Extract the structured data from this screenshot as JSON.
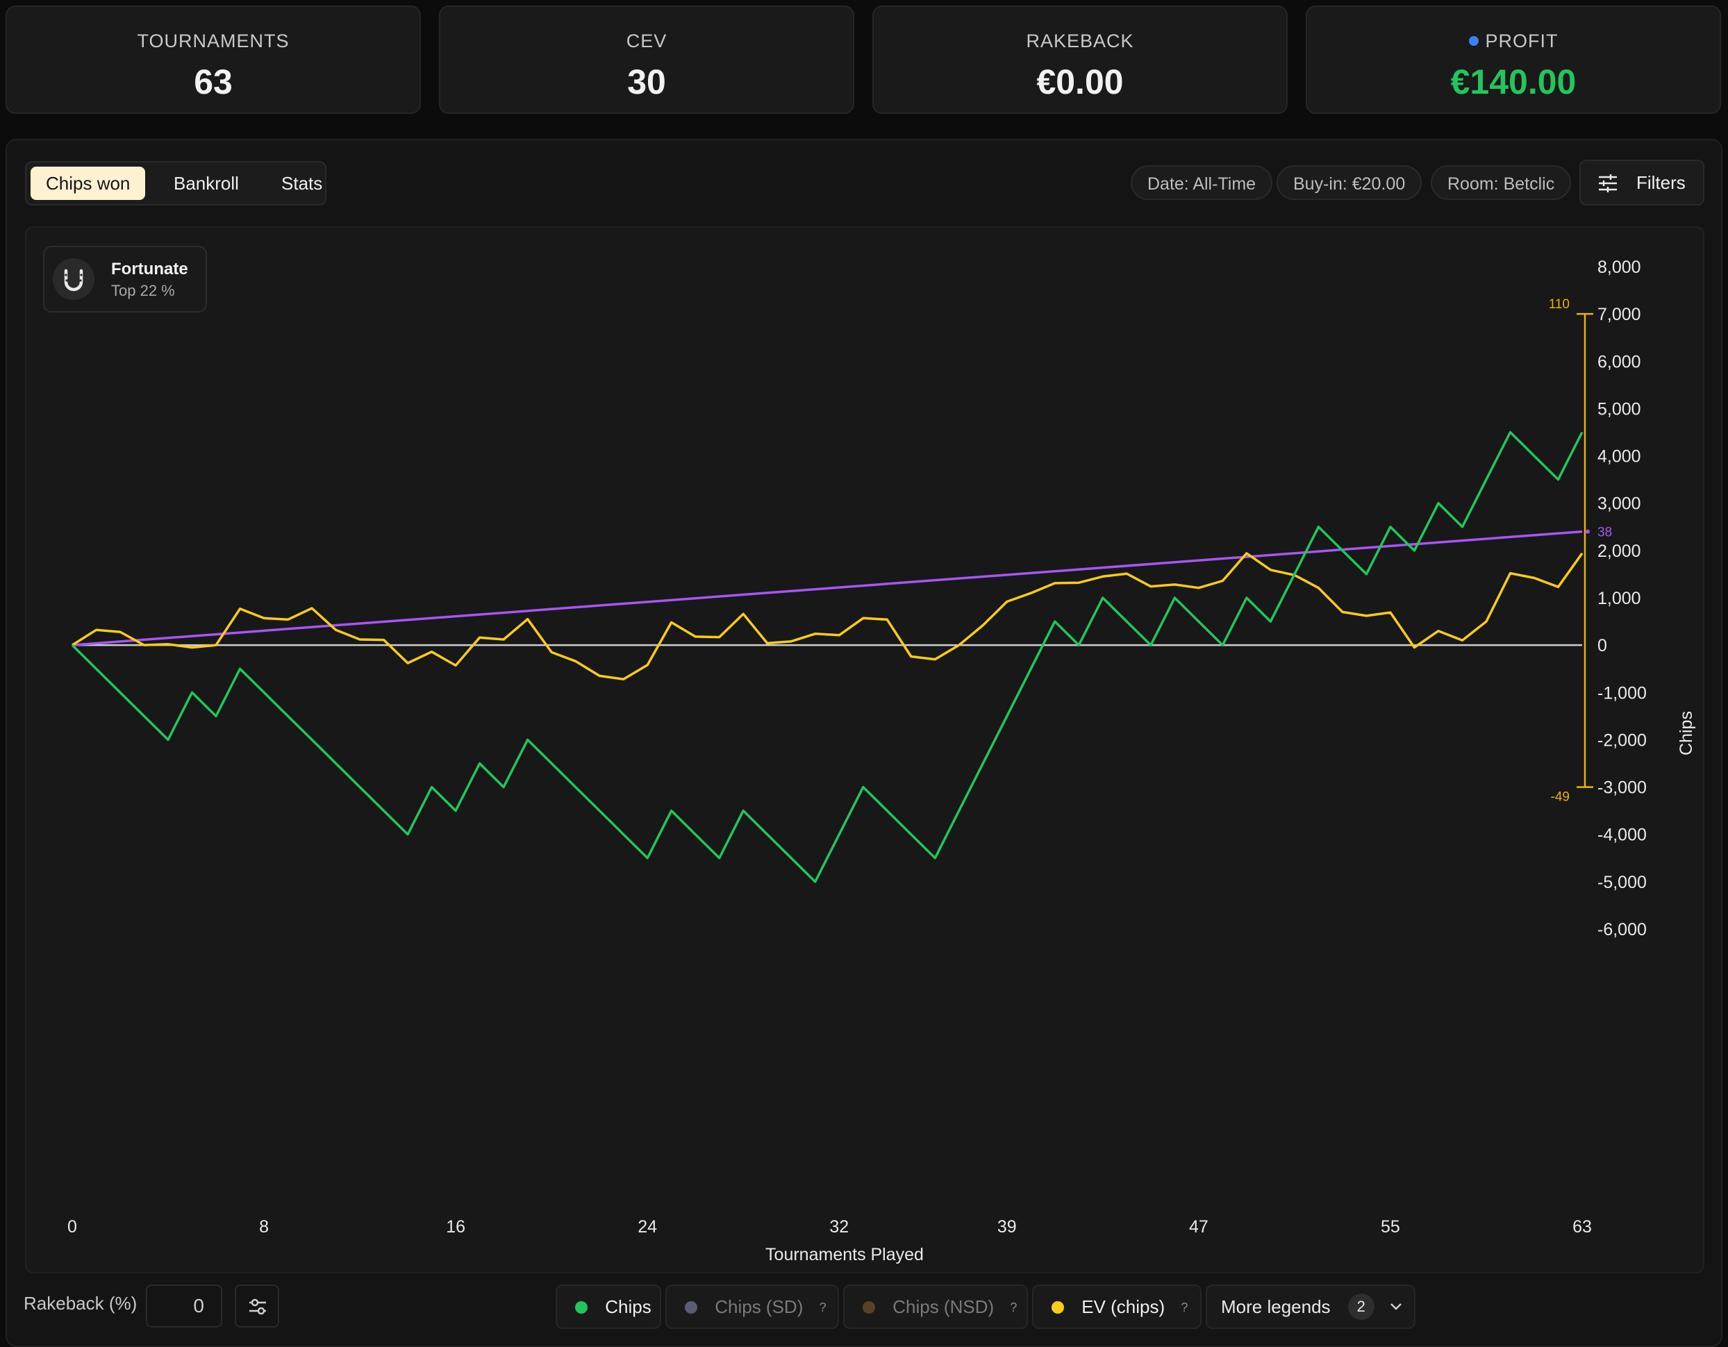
{
  "stats": [
    {
      "label": "TOURNAMENTS",
      "value": "63"
    },
    {
      "label": "CEV",
      "value": "30"
    },
    {
      "label": "RAKEBACK",
      "value": "€0.00"
    },
    {
      "label": "PROFIT",
      "value": "€140.00"
    }
  ],
  "tabs": [
    {
      "label": "Chips won",
      "active": true
    },
    {
      "label": "Bankroll",
      "active": false
    },
    {
      "label": "Stats",
      "active": false
    }
  ],
  "filter_pills": [
    "Date: All-Time",
    "Buy-in: €20.00",
    "Room: Betclic"
  ],
  "filters_button": "Filters",
  "badge": {
    "title": "Fortunate",
    "subtitle": "Top 22 %",
    "icon": "horseshoe-icon"
  },
  "bottom": {
    "rakeback_label": "Rakeback (%)",
    "rakeback_value": "0"
  },
  "legends": [
    {
      "label": "Chips",
      "color": "#22c55e",
      "help": ""
    },
    {
      "label": "Chips (SD)",
      "color": "#5b5b73",
      "help": "?"
    },
    {
      "label": "Chips (NSD)",
      "color": "#5a4025",
      "help": "?"
    },
    {
      "label": "EV (chips)",
      "color": "#facc15",
      "help": "?"
    }
  ],
  "more_legends": {
    "label": "More legends",
    "count": "2"
  },
  "colors": {
    "chips": "#22c55e",
    "ev": "#facc15",
    "trend": "#a855f7",
    "ev_axis": "#eab308",
    "zero": "#cfcfcf"
  },
  "chart_data": {
    "type": "line",
    "xlabel": "Tournaments Played",
    "ylabel": "Chips",
    "ylim": [
      -6000,
      8000
    ],
    "xlim": [
      0,
      63
    ],
    "x_ticks": [
      "0",
      "8",
      "16",
      "24",
      "32",
      "39",
      "47",
      "55",
      "63"
    ],
    "y_ticks": [
      "8,000",
      "7,000",
      "6,000",
      "5,000",
      "4,000",
      "3,000",
      "2,000",
      "1,000",
      "0",
      "-1,000",
      "-2,000",
      "-3,000",
      "-4,000",
      "-5,000",
      "-6,000"
    ],
    "secondary_axis": {
      "top_label": "110",
      "bottom_label": "-49",
      "top": 7000,
      "bottom": -3000
    },
    "trend_end_label": "38",
    "series": [
      {
        "name": "Chips",
        "color": "#22c55e",
        "values": [
          0,
          -500,
          -1000,
          -1500,
          -2000,
          -1000,
          -1500,
          -500,
          -1000,
          -1500,
          -2000,
          -2500,
          -3000,
          -3500,
          -4000,
          -3000,
          -3500,
          -2500,
          -3000,
          -2000,
          -2500,
          -3000,
          -3500,
          -4000,
          -4500,
          -3500,
          -4000,
          -4500,
          -3500,
          -4000,
          -4500,
          -5000,
          -4000,
          -3000,
          -3500,
          -4000,
          -4500,
          -3500,
          -2500,
          -1500,
          -500,
          500,
          0,
          1000,
          500,
          0,
          1000,
          500,
          0,
          1000,
          500,
          1500,
          2500,
          2000,
          1500,
          2500,
          2000,
          3000,
          2500,
          3500,
          4500,
          4000,
          3500,
          4500
        ]
      },
      {
        "name": "EV (chips)",
        "color": "#facc15",
        "values": [
          0,
          320,
          280,
          0,
          20,
          -50,
          0,
          770,
          570,
          540,
          780,
          320,
          120,
          110,
          -380,
          -140,
          -430,
          160,
          120,
          550,
          -150,
          -340,
          -650,
          -720,
          -420,
          480,
          180,
          170,
          660,
          40,
          80,
          240,
          210,
          570,
          540,
          -240,
          -300,
          0,
          420,
          920,
          1100,
          1310,
          1320,
          1450,
          1510,
          1240,
          1280,
          1210,
          1360,
          1940,
          1590,
          1480,
          1210,
          700,
          620,
          690,
          -50,
          300,
          100,
          500,
          1520,
          1420,
          1230,
          1940
        ]
      }
    ],
    "trend": {
      "name": "trend",
      "color": "#a855f7",
      "start": 0,
      "end": 2400
    }
  }
}
